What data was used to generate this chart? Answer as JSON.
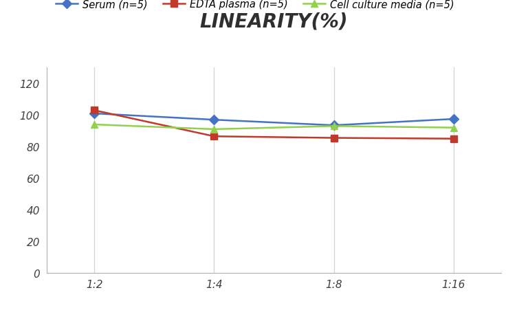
{
  "title": "LINEARITY(%)",
  "x_labels": [
    "1:2",
    "1:4",
    "1:8",
    "1:16"
  ],
  "x_positions": [
    0,
    1,
    2,
    3
  ],
  "series": [
    {
      "label": "Serum (n=5)",
      "values": [
        101.0,
        97.0,
        93.5,
        97.5
      ],
      "color": "#4472C4",
      "marker": "D",
      "marker_color": "#4472C4",
      "linewidth": 1.8
    },
    {
      "label": "EDTA plasma (n=5)",
      "values": [
        103.0,
        86.5,
        85.5,
        85.0
      ],
      "color": "#C0392B",
      "marker": "s",
      "marker_color": "#C0392B",
      "linewidth": 1.8
    },
    {
      "label": "Cell culture media (n=5)",
      "values": [
        94.0,
        91.0,
        93.0,
        92.0
      ],
      "color": "#92D050",
      "marker": "^",
      "marker_color": "#92D050",
      "linewidth": 1.8
    }
  ],
  "ylim": [
    0,
    130
  ],
  "yticks": [
    0,
    20,
    40,
    60,
    80,
    100,
    120
  ],
  "grid_color": "#D3D3D3",
  "background_color": "#FFFFFF",
  "title_fontsize": 20,
  "legend_fontsize": 10.5,
  "tick_fontsize": 11
}
